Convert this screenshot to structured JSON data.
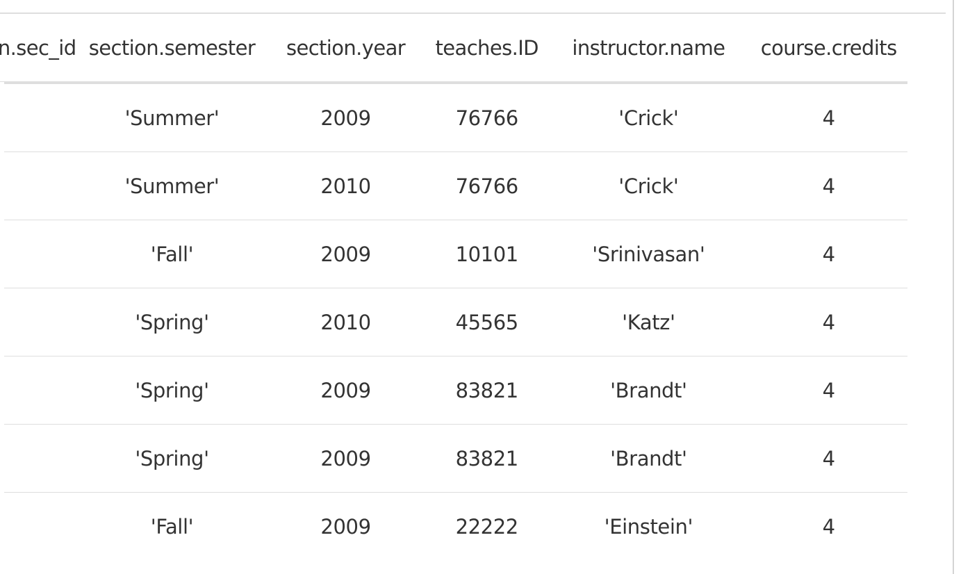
{
  "table": {
    "columns": [
      "section.sec_id",
      "section.semester",
      "section.year",
      "teaches.ID",
      "instructor.name",
      "course.credits"
    ],
    "rows": [
      [
        "",
        "'Summer'",
        "2009",
        "76766",
        "'Crick'",
        "4"
      ],
      [
        "",
        "'Summer'",
        "2010",
        "76766",
        "'Crick'",
        "4"
      ],
      [
        "",
        "'Fall'",
        "2009",
        "10101",
        "'Srinivasan'",
        "4"
      ],
      [
        "",
        "'Spring'",
        "2010",
        "45565",
        "'Katz'",
        "4"
      ],
      [
        "",
        "'Spring'",
        "2009",
        "83821",
        "'Brandt'",
        "4"
      ],
      [
        "",
        "'Spring'",
        "2009",
        "83821",
        "'Brandt'",
        "4"
      ],
      [
        "",
        "'Fall'",
        "2009",
        "22222",
        "'Einstein'",
        "4"
      ]
    ]
  }
}
